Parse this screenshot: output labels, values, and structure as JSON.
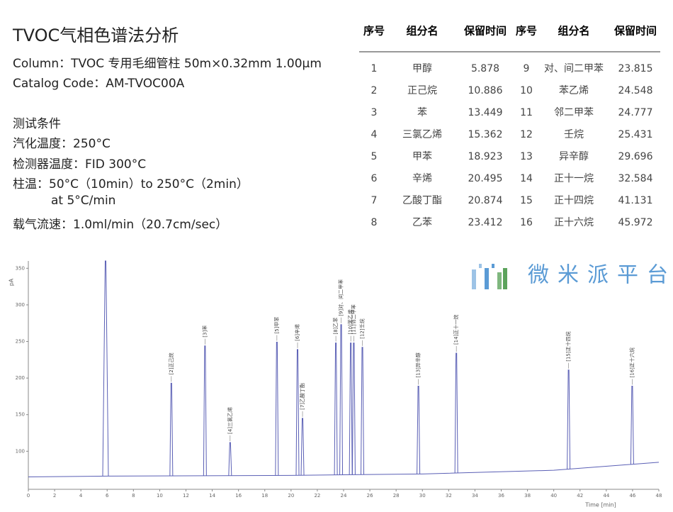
{
  "header": {
    "title": "TVOC气相色谱法分析",
    "lines": [
      "Column：TVOC 专用毛细管柱 50m×0.32mm 1.00μm",
      "Catalog Code：AM-TVOC00A",
      "测试条件",
      "汽化温度：250°C",
      "检测器温度：FID 300°C",
      "柱温：50°C（10min）to 250°C（2min）",
      "at 5°C/min",
      "载气流速：1.0ml/min（20.7cm/sec）"
    ]
  },
  "table": {
    "columns": [
      "序号",
      "组分名",
      "保留时间",
      "序号",
      "组分名",
      "保留时间"
    ],
    "rows": [
      [
        1,
        "甲醇",
        5.878,
        9,
        "对、间二甲苯",
        23.815
      ],
      [
        2,
        "正己烷",
        10.886,
        10,
        "苯乙烯",
        24.548
      ],
      [
        3,
        "苯",
        13.449,
        11,
        "邻二甲苯",
        24.777
      ],
      [
        4,
        "三氯乙烯",
        15.362,
        12,
        "壬烷",
        25.431
      ],
      [
        5,
        "甲苯",
        18.923,
        13,
        "异辛醇",
        29.696
      ],
      [
        6,
        "辛烯",
        20.495,
        14,
        "正十一烷",
        32.584
      ],
      [
        7,
        "乙酸丁酯",
        20.874,
        15,
        "正十四烷",
        41.131
      ],
      [
        8,
        "乙苯",
        23.412,
        16,
        "正十六烷",
        45.972
      ]
    ]
  },
  "watermark": "微米派平台",
  "chart_data": {
    "type": "line",
    "color": "#5a5fb5",
    "y_label": "pA",
    "x_label": "Time [min]",
    "xlim": [
      0,
      48
    ],
    "ylim": [
      48,
      360
    ],
    "xticks": [
      0,
      2,
      4,
      6,
      8,
      10,
      12,
      14,
      16,
      18,
      20,
      22,
      24,
      26,
      28,
      30,
      32,
      34,
      36,
      38,
      40,
      42,
      44,
      46,
      48
    ],
    "yticks": [
      100,
      150,
      200,
      250,
      300,
      350
    ],
    "baseline": {
      "x": [
        0,
        6,
        20,
        30,
        40,
        48
      ],
      "values": [
        65,
        66,
        67,
        69,
        74,
        85
      ]
    },
    "peaks": {
      "times": [
        5.878,
        10.886,
        13.449,
        15.362,
        18.923,
        20.495,
        20.874,
        23.412,
        23.815,
        24.548,
        24.777,
        25.431,
        29.696,
        32.584,
        41.131,
        45.972
      ],
      "heights": [
        360,
        193,
        244,
        112,
        249,
        239,
        145,
        248,
        273,
        248,
        248,
        242,
        189,
        234,
        211,
        189
      ],
      "labels": [
        null,
        "[2]正己烷",
        "[3]苯",
        "[4]三氯乙烯",
        "[5]甲苯",
        "[6]辛烯",
        "[7]乙酸丁酯",
        "[8]乙苯",
        "[9]对、间二甲苯",
        "[10]苯乙烯",
        "[11]邻二甲苯",
        "[12]壬烷",
        "[13]异辛醇",
        "[14]正十一烷",
        "[15]正十四烷",
        "[16]正十六烷"
      ]
    }
  }
}
